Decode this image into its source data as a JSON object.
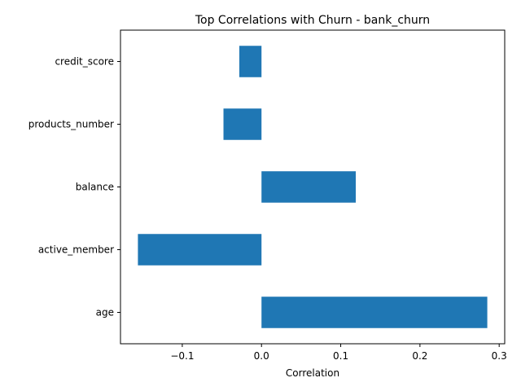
{
  "chart_data": {
    "type": "bar",
    "orientation": "horizontal",
    "title": "Top Correlations with Churn - bank_churn",
    "xlabel": "Correlation",
    "ylabel": "",
    "categories": [
      "age",
      "active_member",
      "balance",
      "products_number",
      "credit_score"
    ],
    "values": [
      0.285,
      -0.156,
      0.119,
      -0.048,
      -0.028
    ],
    "xlim": [
      -0.178,
      0.307
    ],
    "xticks": [
      -0.1,
      0.0,
      0.1,
      0.2,
      0.3
    ],
    "xtick_labels": [
      "−0.1",
      "0.0",
      "0.1",
      "0.2",
      "0.3"
    ],
    "bar_color": "#1f77b4",
    "grid": false,
    "legend": "none"
  }
}
